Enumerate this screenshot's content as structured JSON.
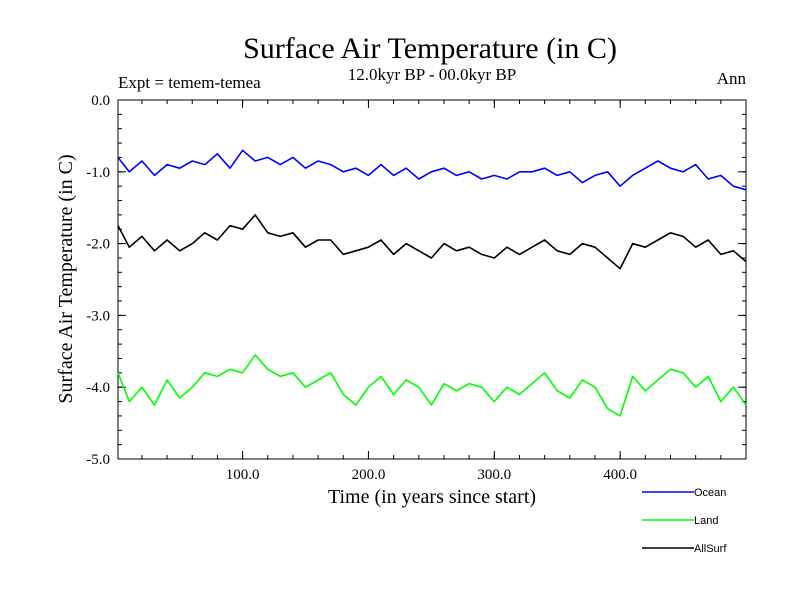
{
  "chart_data": {
    "type": "line",
    "title": "Surface Air Temperature (in C)",
    "subtitle_left": "Expt = temem-temea",
    "subtitle_center": "12.0kyr BP - 00.0kyr BP",
    "subtitle_right": "Ann",
    "xlabel": "Time (in years since start)",
    "ylabel": "Surface Air Temperature (in C)",
    "xlim": [
      1,
      500
    ],
    "ylim": [
      -5.0,
      0.0
    ],
    "xticks": [
      100,
      200,
      300,
      400
    ],
    "xtick_labels": [
      "100.0",
      "200.0",
      "300.0",
      "400.0"
    ],
    "yticks": [
      0,
      -1,
      -2,
      -3,
      -4,
      -5
    ],
    "ytick_labels": [
      "0.0",
      "-1.0",
      "-2.0",
      "-3.0",
      "-4.0",
      "-5.0"
    ],
    "series": [
      {
        "name": "Ocean",
        "color": "#0000ff",
        "x": [
          1,
          10,
          20,
          30,
          40,
          50,
          60,
          70,
          80,
          90,
          100,
          110,
          120,
          130,
          140,
          150,
          160,
          170,
          180,
          190,
          200,
          210,
          220,
          230,
          240,
          250,
          260,
          270,
          280,
          290,
          300,
          310,
          320,
          330,
          340,
          350,
          360,
          370,
          380,
          390,
          400,
          410,
          420,
          430,
          440,
          450,
          460,
          470,
          480,
          490,
          500
        ],
        "values": [
          -0.8,
          -1.0,
          -0.85,
          -1.05,
          -0.9,
          -0.95,
          -0.85,
          -0.9,
          -0.75,
          -0.95,
          -0.7,
          -0.85,
          -0.8,
          -0.9,
          -0.8,
          -0.95,
          -0.85,
          -0.9,
          -1.0,
          -0.95,
          -1.05,
          -0.9,
          -1.05,
          -0.95,
          -1.1,
          -1.0,
          -0.95,
          -1.05,
          -1.0,
          -1.1,
          -1.05,
          -1.1,
          -1.0,
          -1.0,
          -0.95,
          -1.05,
          -1.0,
          -1.15,
          -1.05,
          -1.0,
          -1.2,
          -1.05,
          -0.95,
          -0.85,
          -0.95,
          -1.0,
          -0.9,
          -1.1,
          -1.05,
          -1.2,
          -1.25
        ]
      },
      {
        "name": "Land",
        "color": "#00ff00",
        "x": [
          1,
          10,
          20,
          30,
          40,
          50,
          60,
          70,
          80,
          90,
          100,
          110,
          120,
          130,
          140,
          150,
          160,
          170,
          180,
          190,
          200,
          210,
          220,
          230,
          240,
          250,
          260,
          270,
          280,
          290,
          300,
          310,
          320,
          330,
          340,
          350,
          360,
          370,
          380,
          390,
          400,
          410,
          420,
          430,
          440,
          450,
          460,
          470,
          480,
          490,
          500
        ],
        "values": [
          -3.8,
          -4.2,
          -4.0,
          -4.25,
          -3.9,
          -4.15,
          -4.0,
          -3.8,
          -3.85,
          -3.75,
          -3.8,
          -3.55,
          -3.75,
          -3.85,
          -3.8,
          -4.0,
          -3.9,
          -3.8,
          -4.1,
          -4.25,
          -4.0,
          -3.85,
          -4.1,
          -3.9,
          -4.0,
          -4.25,
          -3.95,
          -4.05,
          -3.95,
          -4.0,
          -4.2,
          -4.0,
          -4.1,
          -3.95,
          -3.8,
          -4.05,
          -4.15,
          -3.9,
          -4.0,
          -4.3,
          -4.4,
          -3.85,
          -4.05,
          -3.9,
          -3.75,
          -3.8,
          -4.0,
          -3.85,
          -4.2,
          -4.0,
          -4.25
        ]
      },
      {
        "name": "AllSurf",
        "color": "#000000",
        "x": [
          1,
          10,
          20,
          30,
          40,
          50,
          60,
          70,
          80,
          90,
          100,
          110,
          120,
          130,
          140,
          150,
          160,
          170,
          180,
          190,
          200,
          210,
          220,
          230,
          240,
          250,
          260,
          270,
          280,
          290,
          300,
          310,
          320,
          330,
          340,
          350,
          360,
          370,
          380,
          390,
          400,
          410,
          420,
          430,
          440,
          450,
          460,
          470,
          480,
          490,
          500
        ],
        "values": [
          -1.75,
          -2.05,
          -1.9,
          -2.1,
          -1.95,
          -2.1,
          -2.0,
          -1.85,
          -1.95,
          -1.75,
          -1.8,
          -1.6,
          -1.85,
          -1.9,
          -1.85,
          -2.05,
          -1.95,
          -1.95,
          -2.15,
          -2.1,
          -2.05,
          -1.95,
          -2.15,
          -2.0,
          -2.1,
          -2.2,
          -2.0,
          -2.1,
          -2.05,
          -2.15,
          -2.2,
          -2.05,
          -2.15,
          -2.05,
          -1.95,
          -2.1,
          -2.15,
          -2.0,
          -2.05,
          -2.2,
          -2.35,
          -2.0,
          -2.05,
          -1.95,
          -1.85,
          -1.9,
          -2.05,
          -1.95,
          -2.15,
          -2.1,
          -2.25
        ]
      }
    ],
    "legend_order": [
      "Ocean",
      "Land",
      "AllSurf"
    ],
    "legend_position": "bottom-right"
  }
}
